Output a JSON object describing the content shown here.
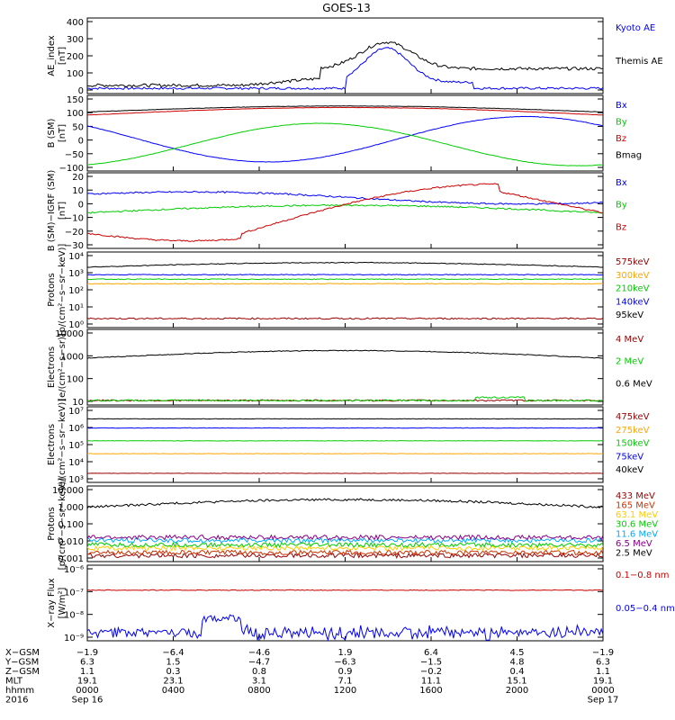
{
  "title": "GOES-13",
  "colors": {
    "black": "#000000",
    "blue": "#0000ff",
    "red": "#cc0000",
    "green": "#00cc00",
    "orange": "#ffa500",
    "darkred": "#990000",
    "gray": "#888888"
  },
  "chart_data": [
    {
      "type": "line",
      "ylabel": [
        "AE_index",
        "[nT]"
      ],
      "ylim": [
        0,
        400
      ],
      "ticks": [
        "0",
        "100",
        "200",
        "300",
        "400"
      ],
      "series": [
        {
          "name": "Kyoto AE",
          "color": "#0000ff"
        },
        {
          "name": "Themis AE",
          "color": "#000000"
        }
      ]
    },
    {
      "type": "line",
      "ylabel": [
        "B (SM)",
        "[nT]"
      ],
      "ylim": [
        -110,
        160
      ],
      "ticks": [
        "−100",
        "−50",
        "0",
        "50",
        "100",
        "150"
      ],
      "series": [
        {
          "name": "Bx",
          "color": "#0000ff"
        },
        {
          "name": "By",
          "color": "#00cc00"
        },
        {
          "name": "Bz",
          "color": "#cc0000"
        },
        {
          "name": "Bmag",
          "color": "#000000"
        }
      ]
    },
    {
      "type": "line",
      "ylabel": [
        "B (SM)−IGRF (SM)",
        "[nT]"
      ],
      "ylim": [
        -32,
        22
      ],
      "ticks": [
        "−30",
        "−20",
        "−10",
        "0",
        "10",
        "20"
      ],
      "series": [
        {
          "name": "Bx",
          "color": "#0000ff"
        },
        {
          "name": "By",
          "color": "#00cc00"
        },
        {
          "name": "Bz",
          "color": "#cc0000"
        }
      ]
    },
    {
      "type": "line",
      "ylabel": [
        "Protons",
        "[p/(cm²−s−sr−keV)]"
      ],
      "ylim": [
        1,
        100000
      ],
      "log": true,
      "ticks": [
        "10⁰",
        "10¹",
        "10²",
        "10³",
        "10⁴"
      ],
      "series": [
        {
          "name": "575keV",
          "color": "#990000"
        },
        {
          "name": "300keV",
          "color": "#ffa500"
        },
        {
          "name": "210keV",
          "color": "#00cc00"
        },
        {
          "name": "140keV",
          "color": "#0000ff"
        },
        {
          "name": "95keV",
          "color": "#000000"
        }
      ]
    },
    {
      "type": "line",
      "ylabel": [
        "Electrons",
        "[e/(cm²−s−sr)]"
      ],
      "ylim": [
        10,
        10000
      ],
      "log": true,
      "ticks": [
        "10",
        "100",
        "1000",
        "10000"
      ],
      "series": [
        {
          "name": "4 MeV",
          "color": "#990000"
        },
        {
          "name": "2 MeV",
          "color": "#00cc00"
        },
        {
          "name": "0.6 MeV",
          "color": "#000000"
        }
      ]
    },
    {
      "type": "line",
      "ylabel": [
        "Electrons",
        "[e/(cm²−s−sr−keV)]"
      ],
      "ylim": [
        1000,
        10000000
      ],
      "log": true,
      "ticks": [
        "10³",
        "10⁴",
        "10⁵",
        "10⁶",
        "10⁷"
      ],
      "series": [
        {
          "name": "475keV",
          "color": "#990000"
        },
        {
          "name": "275keV",
          "color": "#ffa500"
        },
        {
          "name": "150keV",
          "color": "#00cc00"
        },
        {
          "name": "75keV",
          "color": "#0000ff"
        },
        {
          "name": "40keV",
          "color": "#000000"
        }
      ]
    },
    {
      "type": "line",
      "ylabel": [
        "Protons",
        "[p/(cm²−s−sr−keV)]"
      ],
      "ylim": [
        0.001,
        100
      ],
      "log": true,
      "ticks": [
        "0.001",
        "0.010",
        "0.100",
        "1.000",
        "10.000"
      ],
      "series": [
        {
          "name": "433 MeV",
          "color": "#990000"
        },
        {
          "name": "165 MeV",
          "color": "#cc3300"
        },
        {
          "name": "63.1 MeV",
          "color": "#ffcc00"
        },
        {
          "name": "30.6 MeV",
          "color": "#00cc00"
        },
        {
          "name": "11.6 MeV",
          "color": "#00aaff"
        },
        {
          "name": "6.5 MeV",
          "color": "#880088"
        },
        {
          "name": "2.5 MeV",
          "color": "#000000"
        }
      ]
    },
    {
      "type": "line",
      "ylabel": [
        "X−ray Flux",
        "[W/m²]"
      ],
      "ylim": [
        1e-09,
        1e-06
      ],
      "log": true,
      "ticks": [
        "10⁻⁹",
        "10⁻⁸",
        "10⁻⁷",
        "10⁻⁶"
      ],
      "series": [
        {
          "name": "0.1−0.8 nm",
          "color": "#cc0000"
        },
        {
          "name": "0.05−0.4 nm",
          "color": "#0000ff"
        }
      ]
    }
  ],
  "orbit_table": {
    "row_labels": [
      "X−GSM",
      "Y−GSM",
      "Z−GSM",
      "MLT",
      "hhmm",
      "2016"
    ],
    "columns": [
      [
        "−1.9",
        "6.3",
        "1.1",
        "19.1",
        "0000",
        "Sep 16"
      ],
      [
        "−6.4",
        "1.5",
        "0.3",
        "23.1",
        "0400",
        ""
      ],
      [
        "−4.6",
        "−4.7",
        "0.8",
        "3.1",
        "0800",
        ""
      ],
      [
        "1.9",
        "−6.3",
        "0.9",
        "7.1",
        "1200",
        ""
      ],
      [
        "6.4",
        "−1.5",
        "−0.2",
        "11.1",
        "1600",
        ""
      ],
      [
        "4.5",
        "4.8",
        "0.4",
        "15.1",
        "2000",
        ""
      ],
      [
        "−1.9",
        "6.3",
        "1.1",
        "19.1",
        "0000",
        "Sep 17"
      ]
    ]
  }
}
